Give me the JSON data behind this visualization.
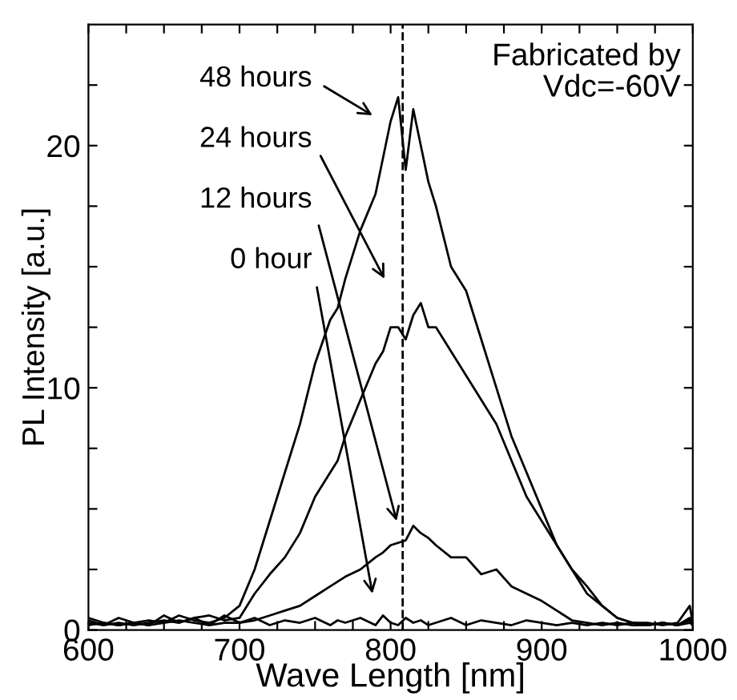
{
  "chart_data": {
    "type": "line",
    "xlabel": "Wave Length [nm]",
    "ylabel": "PL Intensity [a.u.]",
    "xlim": [
      600,
      1000
    ],
    "ylim": [
      0,
      25
    ],
    "xticks": [
      600,
      {
        "value": 625,
        "label": null
      },
      {
        "value": 650,
        "label": null
      },
      {
        "value": 675,
        "label": null
      },
      700,
      {
        "value": 725,
        "label": null
      },
      {
        "value": 750,
        "label": null
      },
      {
        "value": 775,
        "label": null
      },
      800,
      {
        "value": 825,
        "label": null
      },
      {
        "value": 850,
        "label": null
      },
      {
        "value": 875,
        "label": null
      },
      900,
      {
        "value": 925,
        "label": null
      },
      {
        "value": 950,
        "label": null
      },
      {
        "value": 975,
        "label": null
      },
      1000
    ],
    "yticks": [
      0,
      {
        "value": 2.5,
        "label": null
      },
      {
        "value": 5,
        "label": null
      },
      {
        "value": 7.5,
        "label": null
      },
      10,
      {
        "value": 12.5,
        "label": null
      },
      {
        "value": 15,
        "label": null
      },
      {
        "value": 17.5,
        "label": null
      },
      20,
      {
        "value": 22.5,
        "label": null
      }
    ],
    "grid": false,
    "legend": false,
    "line_style": "solid",
    "marker": "none",
    "x": [
      600,
      610,
      620,
      630,
      640,
      650,
      660,
      670,
      680,
      690,
      700,
      710,
      720,
      730,
      740,
      750,
      760,
      765,
      770,
      780,
      790,
      795,
      800,
      805,
      810,
      815,
      820,
      825,
      830,
      840,
      850,
      860,
      870,
      880,
      890,
      900,
      910,
      920,
      930,
      940,
      950,
      960,
      970,
      980,
      990,
      998,
      1000
    ],
    "series": [
      {
        "color": "#000000",
        "values": [
          0.5,
          0.3,
          0.2,
          0.3,
          0.4,
          0.3,
          0.6,
          0.4,
          0.3,
          0.5,
          1.0,
          2.5,
          4.5,
          6.5,
          8.5,
          11,
          12.8,
          13.3,
          14.5,
          16.5,
          18,
          19.5,
          21,
          22,
          19,
          21.5,
          20,
          18.5,
          17.5,
          15,
          14,
          12,
          10,
          8,
          6.5,
          5,
          3.5,
          2.5,
          1.5,
          1.0,
          0.5,
          0.3,
          0.3,
          0.2,
          0.3,
          1.0,
          0.3
        ]
      },
      {
        "color": "#000000",
        "values": [
          0.3,
          0.2,
          0.3,
          0.2,
          0.3,
          0.4,
          0.3,
          0.5,
          0.6,
          0.4,
          0.5,
          1.5,
          2.3,
          3,
          4,
          5.5,
          6.5,
          7,
          8,
          9.5,
          11,
          11.5,
          12.5,
          12.5,
          12,
          13,
          13.5,
          12.5,
          12.5,
          11.5,
          10.5,
          9.5,
          8.5,
          7,
          5.5,
          4.5,
          3.5,
          2.5,
          1.8,
          1.0,
          0.5,
          0.3,
          0.2,
          0.3,
          0.2,
          0.5,
          0.2
        ]
      },
      {
        "color": "#000000",
        "values": [
          0.2,
          0.3,
          0.2,
          0.3,
          0.2,
          0.3,
          0.4,
          0.3,
          0.2,
          0.3,
          0.3,
          0.4,
          0.6,
          0.8,
          1.0,
          1.4,
          1.8,
          2.0,
          2.2,
          2.5,
          3.0,
          3.2,
          3.5,
          3.6,
          3.7,
          4.3,
          4.0,
          3.8,
          3.5,
          3.0,
          3.0,
          2.3,
          2.5,
          1.8,
          1.5,
          1.2,
          0.8,
          0.4,
          0.3,
          0.2,
          0.3,
          0.2,
          0.2,
          0.3,
          0.2,
          0.3,
          0.2
        ]
      },
      {
        "color": "#000000",
        "values": [
          0.4,
          0.2,
          0.5,
          0.3,
          0.2,
          0.6,
          0.3,
          0.5,
          0.2,
          0.6,
          0.3,
          0.5,
          0.2,
          0.4,
          0.3,
          0.5,
          0.2,
          0.4,
          0.3,
          0.5,
          0.2,
          0.6,
          0.3,
          0.2,
          0.5,
          0.3,
          0.4,
          0.2,
          0.3,
          0.5,
          0.2,
          0.4,
          0.3,
          0.2,
          0.4,
          0.3,
          0.2,
          0.3,
          0.2,
          0.3,
          0.2,
          0.3,
          0.2,
          0.3,
          0.2,
          0.4,
          0.2
        ]
      }
    ],
    "ref_lines": [
      {
        "axis": "x",
        "value": 808,
        "line_style": "dashed",
        "color": "#000000"
      }
    ],
    "annotations": [
      "48 hours",
      "24 hours",
      "12 hours",
      "0 hour",
      "Fabricated by\nVdc=-60V"
    ]
  }
}
